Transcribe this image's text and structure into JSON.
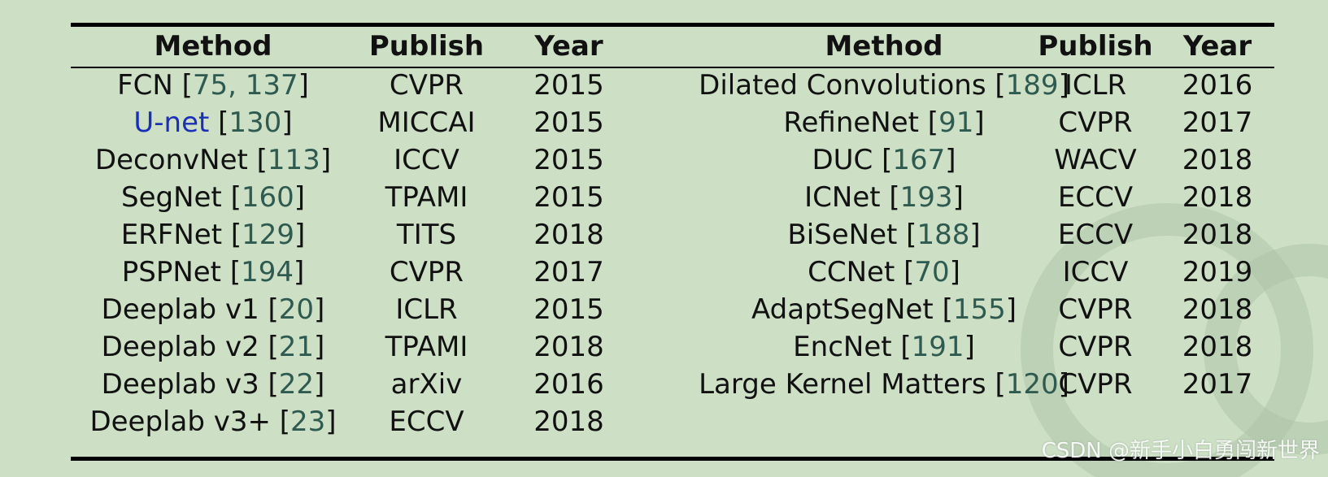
{
  "headers": {
    "left_method": "Method",
    "left_publish": "Publish",
    "left_year": "Year",
    "right_method": "Method",
    "right_publish": "Publish",
    "right_year": "Year"
  },
  "left_rows": [
    {
      "name": "FCN",
      "refs": "75, 137",
      "publish": "CVPR",
      "year": "2015"
    },
    {
      "name": "U-net",
      "refs": "130",
      "publish": "MICCAI",
      "year": "2015",
      "name_color": "#1a2fb8"
    },
    {
      "name": "DeconvNet",
      "refs": "113",
      "publish": "ICCV",
      "year": "2015"
    },
    {
      "name": "SegNet",
      "refs": "160",
      "publish": "TPAMI",
      "year": "2015"
    },
    {
      "name": "ERFNet",
      "refs": "129",
      "publish": "TITS",
      "year": "2018"
    },
    {
      "name": "PSPNet",
      "refs": "194",
      "publish": "CVPR",
      "year": "2017"
    },
    {
      "name": "Deeplab v1",
      "refs": "20",
      "publish": "ICLR",
      "year": "2015"
    },
    {
      "name": "Deeplab v2",
      "refs": "21",
      "publish": "TPAMI",
      "year": "2018"
    },
    {
      "name": "Deeplab v3",
      "refs": "22",
      "publish": "arXiv",
      "year": "2016"
    },
    {
      "name": "Deeplab v3+",
      "refs": "23",
      "publish": "ECCV",
      "year": "2018"
    }
  ],
  "right_rows": [
    {
      "name": "Dilated Convolutions",
      "refs": "189",
      "publish": "ICLR",
      "year": "2016"
    },
    {
      "name": "RefineNet",
      "refs": "91",
      "publish": "CVPR",
      "year": "2017"
    },
    {
      "name": "DUC",
      "refs": "167",
      "publish": "WACV",
      "year": "2018"
    },
    {
      "name": "ICNet",
      "refs": "193",
      "publish": "ECCV",
      "year": "2018"
    },
    {
      "name": "BiSeNet",
      "refs": "188",
      "publish": "ECCV",
      "year": "2018"
    },
    {
      "name": "CCNet",
      "refs": "70",
      "publish": "ICCV",
      "year": "2019"
    },
    {
      "name": "AdaptSegNet",
      "refs": "155",
      "publish": "CVPR",
      "year": "2018"
    },
    {
      "name": "EncNet",
      "refs": "191",
      "publish": "CVPR",
      "year": "2018"
    },
    {
      "name": "Large Kernel Matters",
      "refs": "120",
      "publish": "CVPR",
      "year": "2017"
    }
  ],
  "credit": "CSDN @新手小白勇闯新世界",
  "colors": {
    "background": "#cde0c6",
    "reference_number": "#2f5a50",
    "link": "#1a2fb8"
  }
}
